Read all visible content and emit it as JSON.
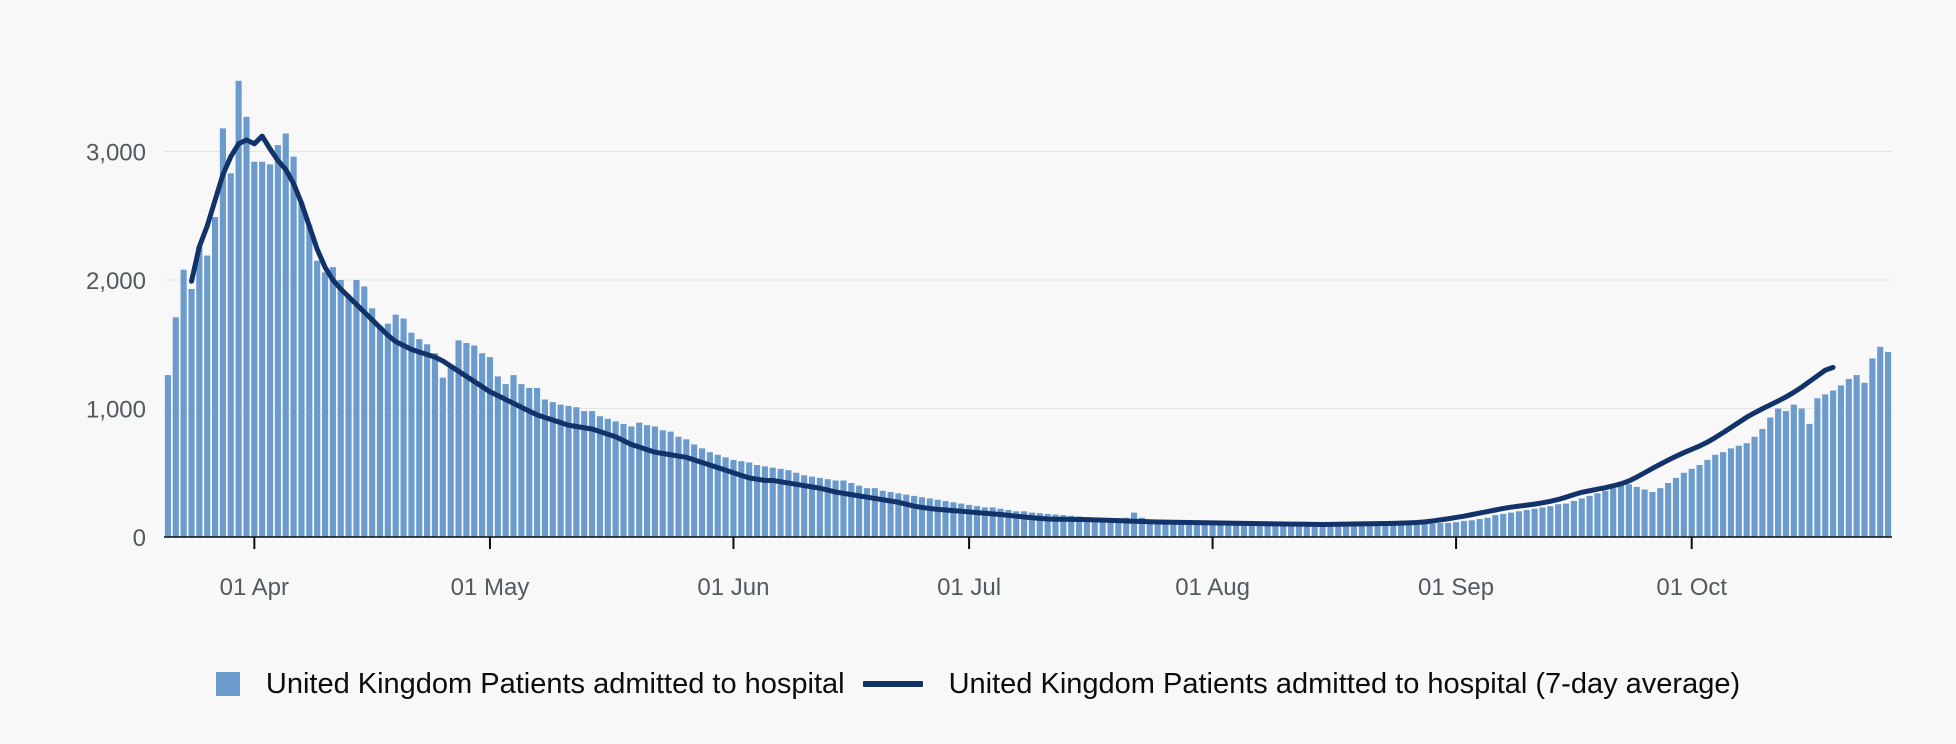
{
  "chart_data": {
    "type": "bar",
    "title": "",
    "xlabel": "",
    "ylabel": "",
    "ylim": [
      0,
      3750
    ],
    "grid": true,
    "legend_position": "bottom",
    "y_ticks": [
      0,
      1000,
      2000,
      3000
    ],
    "y_tick_labels": [
      "0",
      "1,000",
      "2,000",
      "3,000"
    ],
    "x_ticks": [
      {
        "day": 11,
        "label": "01 Apr"
      },
      {
        "day": 41,
        "label": "01 May"
      },
      {
        "day": 72,
        "label": "01 Jun"
      },
      {
        "day": 102,
        "label": "01 Jul"
      },
      {
        "day": 133,
        "label": "01 Aug"
      },
      {
        "day": 164,
        "label": "01 Sep"
      },
      {
        "day": 194,
        "label": "01 Oct"
      }
    ],
    "start_date": "2020-03-21",
    "colors": {
      "bars": "#6b9bcd",
      "average": "#12336a",
      "grid": "#e4e4e4",
      "axis": "#0b0c0c"
    },
    "series": [
      {
        "name": "United Kingdom Patients admitted to hospital",
        "type": "bar",
        "values": [
          1260,
          1710,
          2080,
          1930,
          2260,
          2190,
          2490,
          3180,
          2830,
          3550,
          3270,
          2920,
          2920,
          2900,
          3050,
          3140,
          2960,
          2600,
          2430,
          2150,
          2060,
          2100,
          2000,
          1880,
          2000,
          1950,
          1780,
          1640,
          1660,
          1730,
          1700,
          1590,
          1540,
          1500,
          1430,
          1240,
          1340,
          1530,
          1510,
          1490,
          1430,
          1400,
          1250,
          1190,
          1260,
          1190,
          1160,
          1160,
          1070,
          1050,
          1030,
          1020,
          1010,
          980,
          980,
          940,
          920,
          900,
          880,
          860,
          890,
          870,
          860,
          830,
          820,
          780,
          760,
          720,
          690,
          660,
          640,
          620,
          600,
          590,
          580,
          560,
          550,
          540,
          530,
          520,
          500,
          480,
          470,
          460,
          450,
          440,
          440,
          420,
          400,
          380,
          380,
          360,
          350,
          340,
          330,
          320,
          310,
          300,
          290,
          280,
          270,
          260,
          250,
          240,
          230,
          230,
          220,
          210,
          200,
          200,
          190,
          185,
          180,
          175,
          170,
          165,
          160,
          155,
          150,
          145,
          140,
          145,
          150,
          190,
          150,
          135,
          130,
          130,
          125,
          125,
          120,
          118,
          115,
          113,
          112,
          110,
          110,
          108,
          106,
          105,
          104,
          103,
          102,
          101,
          100,
          100,
          100,
          99,
          98,
          97,
          95,
          94,
          93,
          95,
          97,
          98,
          99,
          100,
          101,
          102,
          104,
          106,
          108,
          110,
          115,
          125,
          130,
          140,
          150,
          170,
          180,
          190,
          200,
          210,
          220,
          230,
          240,
          255,
          260,
          280,
          300,
          320,
          340,
          360,
          380,
          400,
          410,
          390,
          370,
          350,
          380,
          420,
          460,
          500,
          530,
          560,
          600,
          640,
          660,
          690,
          710,
          730,
          780,
          840,
          930,
          1000,
          980,
          1030,
          1000,
          880,
          1080,
          1110,
          1140,
          1180,
          1230,
          1260,
          1200,
          1390,
          1480,
          1440
        ]
      },
      {
        "name": "United Kingdom Patients admitted to hospital (7-day average)",
        "type": "line",
        "start_day": 3,
        "values": [
          1990,
          2260,
          2420,
          2620,
          2820,
          2960,
          3060,
          3090,
          3060,
          3120,
          3020,
          2930,
          2860,
          2750,
          2600,
          2420,
          2240,
          2100,
          2000,
          1930,
          1870,
          1810,
          1750,
          1690,
          1630,
          1570,
          1520,
          1490,
          1460,
          1440,
          1420,
          1400,
          1370,
          1330,
          1290,
          1250,
          1210,
          1170,
          1130,
          1100,
          1070,
          1040,
          1010,
          980,
          950,
          930,
          910,
          890,
          870,
          860,
          850,
          840,
          820,
          800,
          780,
          750,
          720,
          700,
          680,
          660,
          650,
          640,
          630,
          620,
          600,
          580,
          560,
          540,
          520,
          500,
          480,
          460,
          450,
          440,
          440,
          430,
          420,
          410,
          400,
          390,
          380,
          365,
          350,
          340,
          330,
          320,
          310,
          300,
          290,
          280,
          270,
          255,
          240,
          230,
          222,
          215,
          210,
          205,
          200,
          195,
          190,
          185,
          180,
          175,
          168,
          162,
          156,
          150,
          145,
          140,
          138,
          138,
          137,
          136,
          135,
          133,
          131,
          129,
          127,
          125,
          123,
          121,
          119,
          117,
          116,
          115,
          114,
          113,
          112,
          111,
          110,
          109,
          108,
          107,
          106,
          105,
          104,
          103,
          102,
          101,
          100,
          100,
          99,
          98,
          97,
          98,
          99,
          100,
          101,
          102,
          103,
          104,
          105,
          106,
          108,
          110,
          113,
          118,
          125,
          133,
          142,
          152,
          162,
          174,
          186,
          198,
          210,
          222,
          232,
          240,
          248,
          256,
          266,
          278,
          292,
          310,
          330,
          348,
          360,
          372,
          384,
          398,
          414,
          436,
          466,
          500,
          534,
          566,
          598,
          628,
          656,
          682,
          708,
          738,
          774,
          812,
          852,
          892,
          932,
          966,
          998,
          1028,
          1058,
          1090,
          1126,
          1166,
          1210,
          1254,
          1298,
          1320
        ]
      }
    ]
  }
}
